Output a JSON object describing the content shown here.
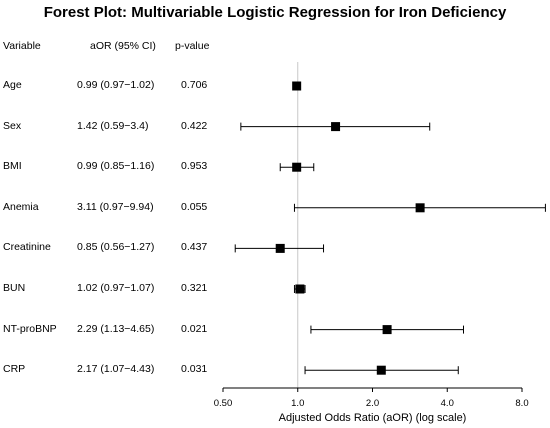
{
  "chart_data": {
    "type": "forest",
    "title": "Forest Plot: Multivariable Logistic Regression for Iron Deficiency",
    "columns": {
      "variable": "Variable",
      "estimate": "aOR (95% CI)",
      "pvalue": "p-value"
    },
    "rows": [
      {
        "variable": "Age",
        "aor": 0.99,
        "lo": 0.97,
        "hi": 1.02,
        "label": "0.99 (0.97−1.02)",
        "p": "0.706"
      },
      {
        "variable": "Sex",
        "aor": 1.42,
        "lo": 0.59,
        "hi": 3.4,
        "label": "1.42 (0.59−3.4)",
        "p": "0.422"
      },
      {
        "variable": "BMI",
        "aor": 0.99,
        "lo": 0.85,
        "hi": 1.16,
        "label": "0.99 (0.85−1.16)",
        "p": "0.953"
      },
      {
        "variable": "Anemia",
        "aor": 3.11,
        "lo": 0.97,
        "hi": 9.94,
        "label": "3.11 (0.97−9.94)",
        "p": "0.055"
      },
      {
        "variable": "Creatinine",
        "aor": 0.85,
        "lo": 0.56,
        "hi": 1.27,
        "label": "0.85 (0.56−1.27)",
        "p": "0.437"
      },
      {
        "variable": "BUN",
        "aor": 1.02,
        "lo": 0.97,
        "hi": 1.07,
        "label": "1.02 (0.97−1.07)",
        "p": "0.321"
      },
      {
        "variable": "NT-proBNP",
        "aor": 2.29,
        "lo": 1.13,
        "hi": 4.65,
        "label": "2.29 (1.13−4.65)",
        "p": "0.021"
      },
      {
        "variable": "CRP",
        "aor": 2.17,
        "lo": 1.07,
        "hi": 4.43,
        "label": "2.17 (1.07−4.43)",
        "p": "0.031"
      }
    ],
    "x_axis": {
      "label": "Adjusted Odds Ratio (aOR) (log scale)",
      "scale": "log",
      "range": [
        0.5,
        8.0
      ],
      "ticks": [
        0.5,
        1.0,
        2.0,
        4.0,
        8.0
      ],
      "tick_labels": [
        "0.50",
        "1.0",
        "2.0",
        "4.0",
        "8.0"
      ]
    },
    "reference_line": 1.0,
    "grid": false
  }
}
